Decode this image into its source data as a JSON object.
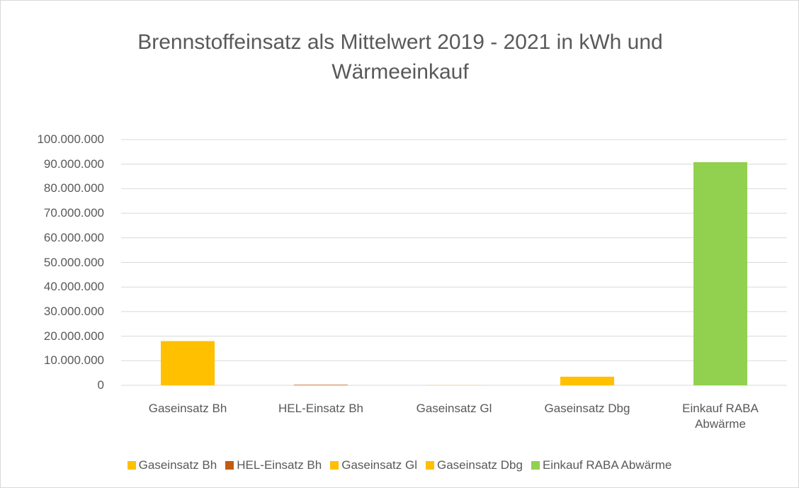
{
  "chart_data": {
    "type": "bar",
    "title": "Brennstoffeinsatz als Mittelwert 2019 - 2021 in kWh und Wärmeeinkauf",
    "categories": [
      "Gaseinsatz Bh",
      "HEL-Einsatz Bh",
      "Gaseinsatz Gl",
      "Gaseinsatz Dbg",
      "Einkauf RABA Abwärme"
    ],
    "values": [
      18000000,
      200000,
      50000,
      3500000,
      90800000
    ],
    "colors": [
      "#FFC000",
      "#C55A11",
      "#FFC000",
      "#FFC000",
      "#92D050"
    ],
    "ylim": [
      0,
      100000000
    ],
    "yticks": [
      0,
      {
        "value": 10000000,
        "label": "10.000.000"
      },
      {
        "value": 20000000,
        "label": "20.000.000"
      },
      {
        "value": 30000000,
        "label": "30.000.000"
      },
      {
        "value": 40000000,
        "label": "40.000.000"
      },
      {
        "value": 50000000,
        "label": "50.000.000"
      },
      {
        "value": 60000000,
        "label": "60.000.000"
      },
      {
        "value": 70000000,
        "label": "70.000.000"
      },
      {
        "value": 80000000,
        "label": "80.000.000"
      },
      {
        "value": 90000000,
        "label": "90.000.000"
      },
      {
        "value": 100000000,
        "label": "100.000.000"
      }
    ],
    "grid": true,
    "legend": "bottom"
  }
}
